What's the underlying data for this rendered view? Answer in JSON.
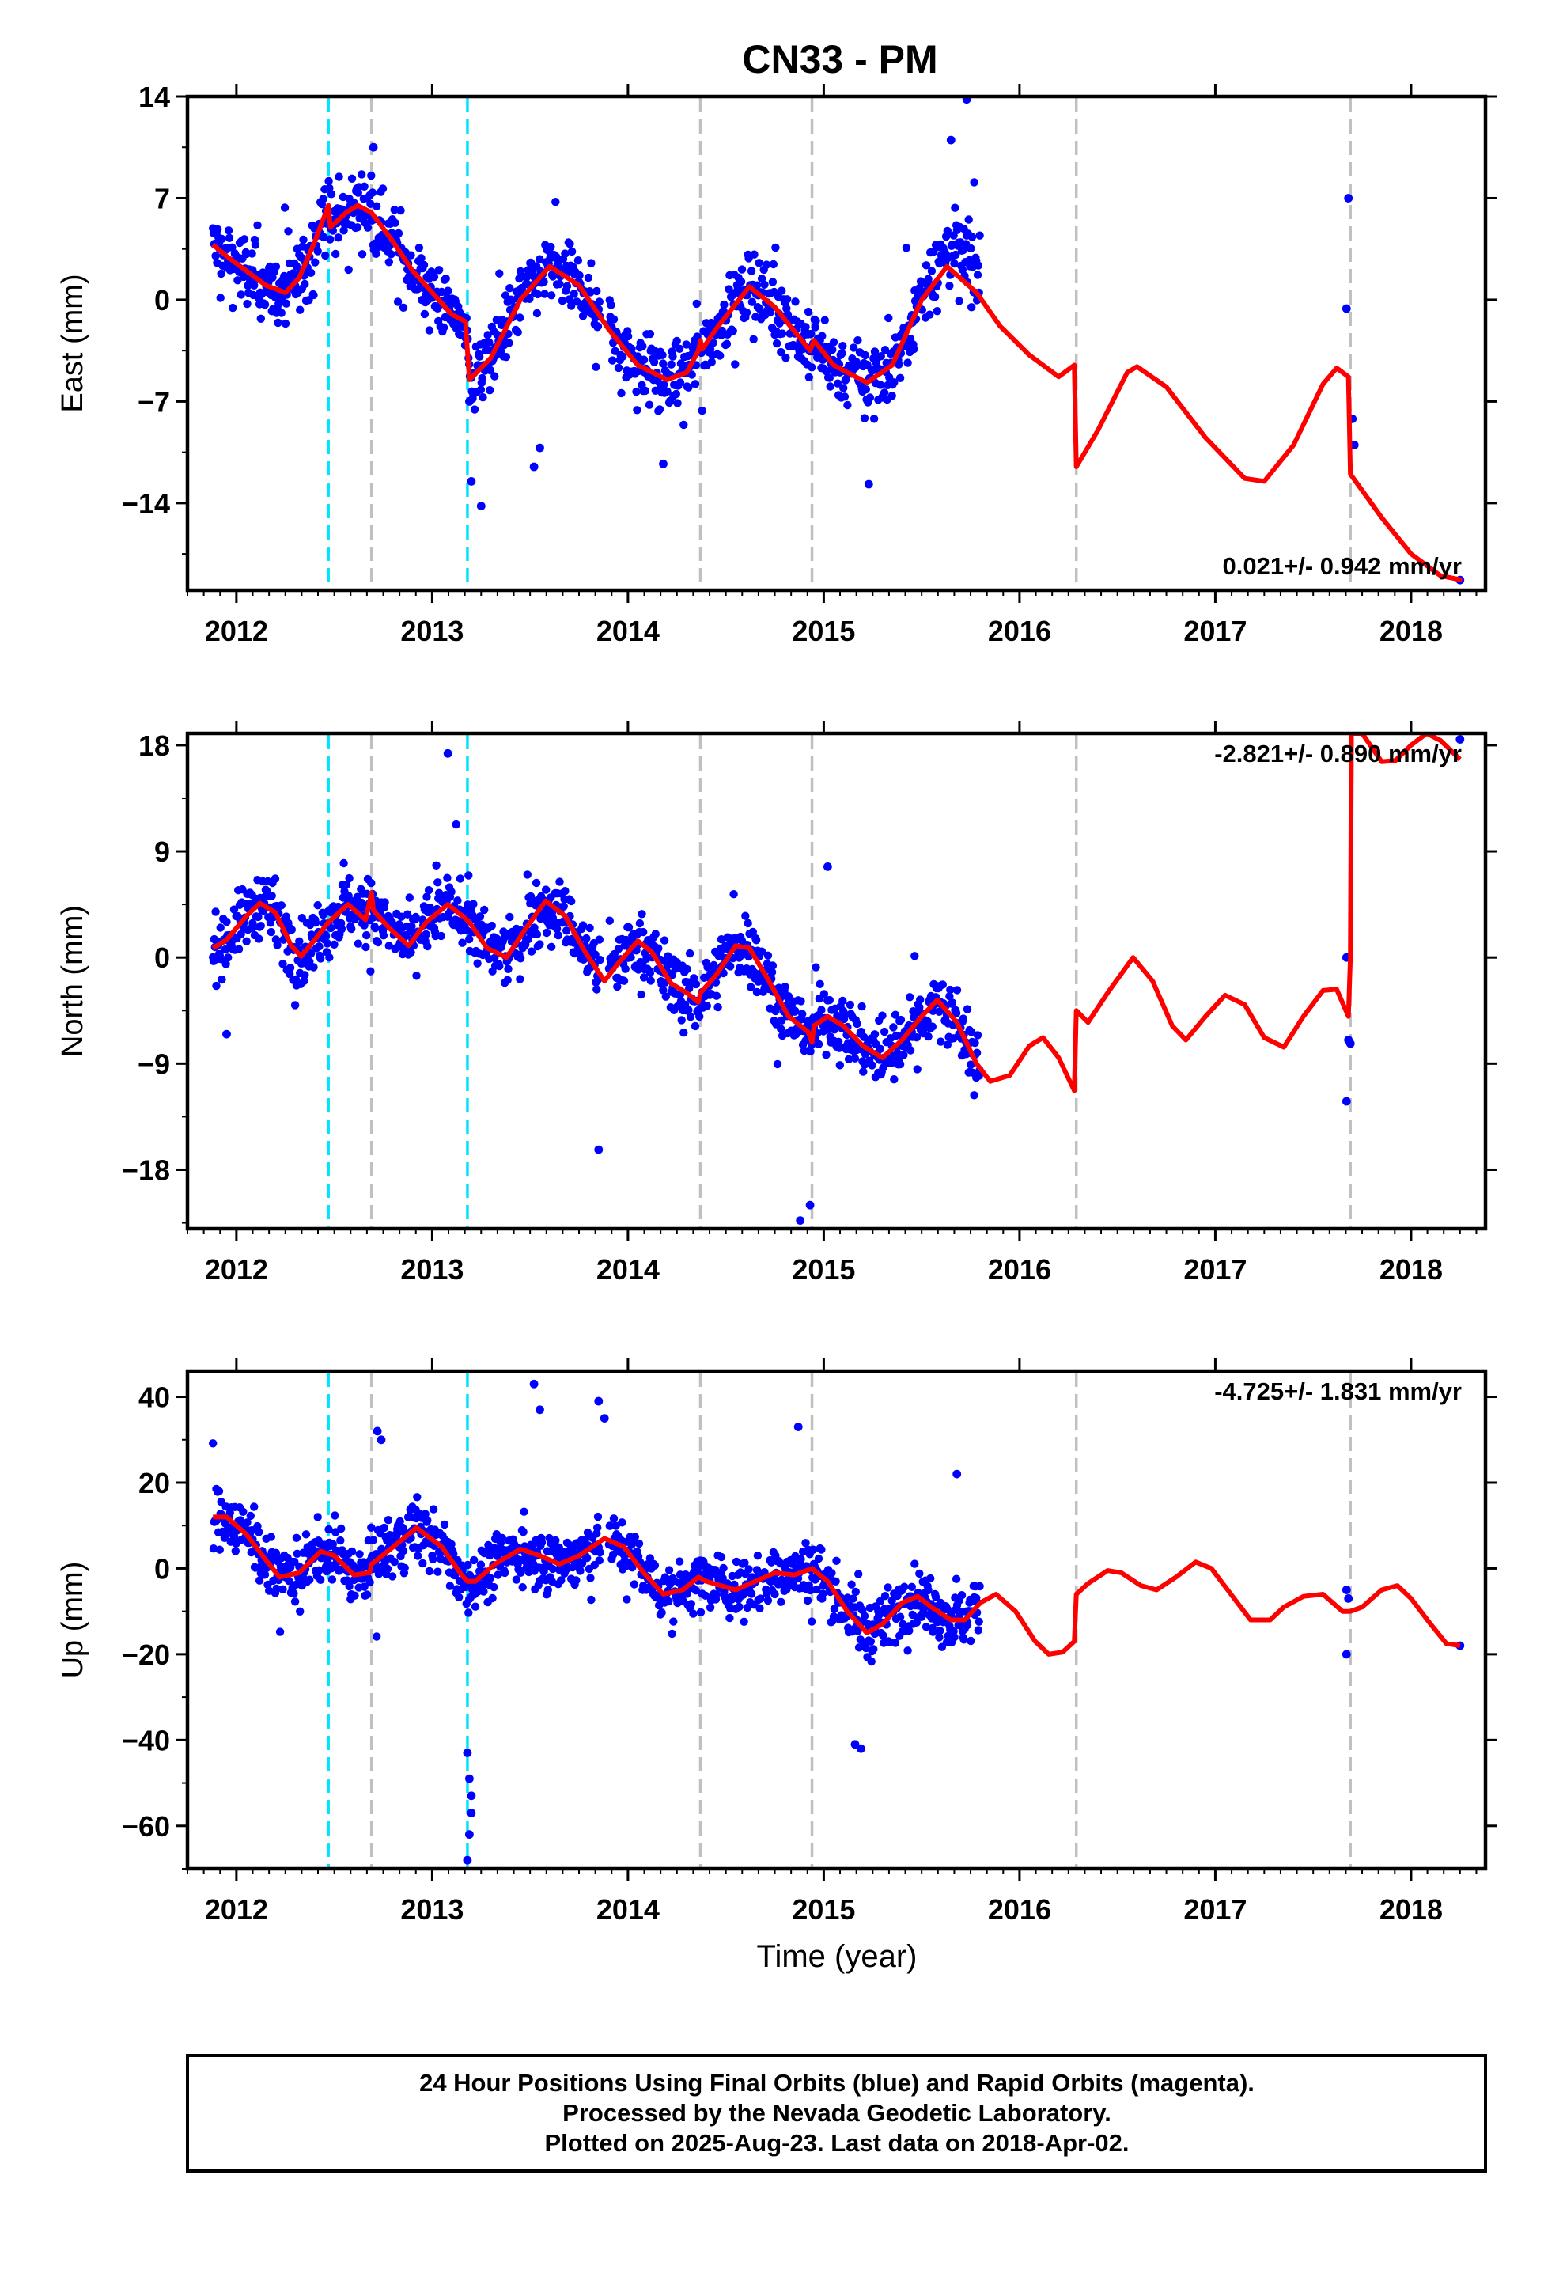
{
  "title": "CN33 - PM",
  "x_label": "Time (year)",
  "footer": {
    "line1": "24 Hour Positions Using Final Orbits (blue) and Rapid Orbits (magenta).",
    "line2": "Processed by the Nevada Geodetic Laboratory.",
    "line3": "Plotted on 2025-Aug-23. Last data on 2018-Apr-02."
  },
  "colors": {
    "final_orbits": "#0000ff",
    "model": "#ff0000",
    "equipment_change": "#c0c0c0",
    "earthquake": "#00e5ff"
  },
  "chart_data": [
    {
      "type": "scatter",
      "component": "East",
      "ylabel": "East (mm)",
      "xlim": [
        2011.75,
        2018.38
      ],
      "ylim": [
        -20,
        14
      ],
      "yticks": [
        -14,
        -7,
        0,
        7,
        14
      ],
      "xticks": [
        2012,
        2013,
        2014,
        2015,
        2016,
        2017,
        2018
      ],
      "rate_label": "0.021+/- 0.942 mm/yr",
      "rate_position": "bottom-right",
      "offsets": [
        {
          "x": 2012.47,
          "kind": "earthquake"
        },
        {
          "x": 2012.69,
          "kind": "equipment"
        },
        {
          "x": 2013.18,
          "kind": "earthquake"
        },
        {
          "x": 2014.37,
          "kind": "equipment"
        },
        {
          "x": 2014.94,
          "kind": "equipment"
        },
        {
          "x": 2016.29,
          "kind": "equipment"
        },
        {
          "x": 2017.69,
          "kind": "equipment"
        }
      ],
      "model": [
        [
          2011.88,
          3.8
        ],
        [
          2011.95,
          3
        ],
        [
          2012.05,
          2
        ],
        [
          2012.15,
          1
        ],
        [
          2012.25,
          0.5
        ],
        [
          2012.32,
          1.5
        ],
        [
          2012.4,
          4
        ],
        [
          2012.47,
          6.5
        ],
        [
          2012.48,
          5
        ],
        [
          2012.56,
          6
        ],
        [
          2012.62,
          6.5
        ],
        [
          2012.69,
          6
        ],
        [
          2012.8,
          4
        ],
        [
          2012.9,
          2
        ],
        [
          2013.0,
          0.5
        ],
        [
          2013.1,
          -1
        ],
        [
          2013.17,
          -1.5
        ],
        [
          2013.19,
          -5.5
        ],
        [
          2013.3,
          -4
        ],
        [
          2013.45,
          0
        ],
        [
          2013.6,
          2.3
        ],
        [
          2013.75,
          1
        ],
        [
          2013.9,
          -2
        ],
        [
          2014.05,
          -4.5
        ],
        [
          2014.2,
          -5.5
        ],
        [
          2014.3,
          -5
        ],
        [
          2014.36,
          -3.5
        ],
        [
          2014.37,
          -2.8
        ],
        [
          2014.38,
          -3.4
        ],
        [
          2014.45,
          -2
        ],
        [
          2014.62,
          0.9
        ],
        [
          2014.75,
          -0.5
        ],
        [
          2014.93,
          -3.5
        ],
        [
          2014.95,
          -2.8
        ],
        [
          2015.05,
          -4.5
        ],
        [
          2015.22,
          -5.7
        ],
        [
          2015.35,
          -4.5
        ],
        [
          2015.5,
          0
        ],
        [
          2015.63,
          2.3
        ],
        [
          2015.78,
          0.5
        ],
        [
          2015.9,
          -1.8
        ],
        [
          2016.05,
          -3.8
        ],
        [
          2016.2,
          -5.3
        ],
        [
          2016.28,
          -4.5
        ],
        [
          2016.29,
          -11.5
        ],
        [
          2016.4,
          -9
        ],
        [
          2016.55,
          -5
        ],
        [
          2016.6,
          -4.6
        ],
        [
          2016.75,
          -6
        ],
        [
          2016.95,
          -9.5
        ],
        [
          2017.15,
          -12.3
        ],
        [
          2017.25,
          -12.5
        ],
        [
          2017.4,
          -10
        ],
        [
          2017.55,
          -5.8
        ],
        [
          2017.62,
          -4.7
        ],
        [
          2017.68,
          -5.3
        ],
        [
          2017.69,
          -12
        ],
        [
          2017.85,
          -15
        ],
        [
          2018.0,
          -17.5
        ],
        [
          2018.15,
          -19
        ],
        [
          2018.26,
          -19.3
        ]
      ],
      "outliers": [
        [
          2017.68,
          7
        ],
        [
          2017.67,
          -0.6
        ],
        [
          2017.7,
          -8.2
        ],
        [
          2017.71,
          -10
        ],
        [
          2018.25,
          -19.3
        ],
        [
          2015.73,
          13.8
        ],
        [
          2015.65,
          11
        ],
        [
          2012.7,
          10.5
        ],
        [
          2013.19,
          -7
        ],
        [
          2013.2,
          -12.5
        ],
        [
          2013.25,
          -14.2
        ],
        [
          2013.52,
          -11.5
        ],
        [
          2013.55,
          -10.2
        ],
        [
          2014.18,
          -11.3
        ],
        [
          2015.23,
          -12.7
        ]
      ]
    },
    {
      "type": "scatter",
      "component": "North",
      "ylabel": "North (mm)",
      "xlim": [
        2011.75,
        2018.38
      ],
      "ylim": [
        -23,
        19
      ],
      "yticks": [
        -18,
        -9,
        0,
        9,
        18
      ],
      "xticks": [
        2012,
        2013,
        2014,
        2015,
        2016,
        2017,
        2018
      ],
      "rate_label": "-2.821+/- 0.890 mm/yr",
      "rate_position": "top-right",
      "offsets": [
        {
          "x": 2012.47,
          "kind": "earthquake"
        },
        {
          "x": 2012.69,
          "kind": "equipment"
        },
        {
          "x": 2013.18,
          "kind": "earthquake"
        },
        {
          "x": 2014.37,
          "kind": "equipment"
        },
        {
          "x": 2014.94,
          "kind": "equipment"
        },
        {
          "x": 2016.29,
          "kind": "equipment"
        },
        {
          "x": 2017.69,
          "kind": "equipment"
        }
      ],
      "model": [
        [
          2011.88,
          0.8
        ],
        [
          2011.95,
          1.5
        ],
        [
          2012.05,
          3.5
        ],
        [
          2012.12,
          4.6
        ],
        [
          2012.2,
          3.8
        ],
        [
          2012.28,
          1
        ],
        [
          2012.33,
          0.1
        ],
        [
          2012.4,
          1.5
        ],
        [
          2012.47,
          3
        ],
        [
          2012.57,
          4.5
        ],
        [
          2012.66,
          3.2
        ],
        [
          2012.69,
          5.5
        ],
        [
          2012.7,
          4
        ],
        [
          2012.78,
          2.5
        ],
        [
          2012.88,
          1
        ],
        [
          2012.97,
          3
        ],
        [
          2013.08,
          4.5
        ],
        [
          2013.17,
          3.3
        ],
        [
          2013.19,
          3
        ],
        [
          2013.28,
          0.8
        ],
        [
          2013.38,
          0
        ],
        [
          2013.48,
          2.5
        ],
        [
          2013.58,
          4.8
        ],
        [
          2013.68,
          3.5
        ],
        [
          2013.78,
          0.5
        ],
        [
          2013.88,
          -2
        ],
        [
          2013.95,
          -0.5
        ],
        [
          2014.05,
          1.4
        ],
        [
          2014.12,
          0.5
        ],
        [
          2014.22,
          -2.2
        ],
        [
          2014.3,
          -3
        ],
        [
          2014.36,
          -3.8
        ],
        [
          2014.37,
          -3
        ],
        [
          2014.45,
          -1.5
        ],
        [
          2014.55,
          1
        ],
        [
          2014.62,
          0.8
        ],
        [
          2014.72,
          -2
        ],
        [
          2014.82,
          -5
        ],
        [
          2014.92,
          -6.3
        ],
        [
          2014.94,
          -7.2
        ],
        [
          2014.95,
          -5.8
        ],
        [
          2015.02,
          -5
        ],
        [
          2015.1,
          -5.8
        ],
        [
          2015.2,
          -7.5
        ],
        [
          2015.3,
          -8.5
        ],
        [
          2015.4,
          -7
        ],
        [
          2015.5,
          -5
        ],
        [
          2015.58,
          -3.6
        ],
        [
          2015.68,
          -5.5
        ],
        [
          2015.78,
          -9
        ],
        [
          2015.85,
          -10.5
        ],
        [
          2015.95,
          -10
        ],
        [
          2016.05,
          -7.5
        ],
        [
          2016.12,
          -6.8
        ],
        [
          2016.2,
          -8.5
        ],
        [
          2016.28,
          -11.3
        ],
        [
          2016.29,
          -4.5
        ],
        [
          2016.35,
          -5.5
        ],
        [
          2016.45,
          -3
        ],
        [
          2016.58,
          0
        ],
        [
          2016.68,
          -2
        ],
        [
          2016.78,
          -5.8
        ],
        [
          2016.85,
          -7
        ],
        [
          2016.95,
          -5
        ],
        [
          2017.05,
          -3.2
        ],
        [
          2017.15,
          -4
        ],
        [
          2017.25,
          -6.8
        ],
        [
          2017.35,
          -7.6
        ],
        [
          2017.45,
          -5
        ],
        [
          2017.55,
          -2.8
        ],
        [
          2017.62,
          -2.7
        ],
        [
          2017.68,
          -5
        ],
        [
          2017.69,
          0
        ],
        [
          2017.695,
          19
        ],
        [
          2017.75,
          19
        ],
        [
          2017.85,
          16.6
        ],
        [
          2017.92,
          16.7
        ],
        [
          2018.0,
          18
        ],
        [
          2018.08,
          19
        ],
        [
          2018.15,
          18.4
        ],
        [
          2018.25,
          16.8
        ]
      ],
      "outliers": [
        [
          2017.67,
          0
        ],
        [
          2017.68,
          -7
        ],
        [
          2017.69,
          -7.3
        ],
        [
          2017.67,
          -12.2
        ],
        [
          2018.25,
          18.5
        ],
        [
          2013.08,
          17.3
        ],
        [
          2014.93,
          -21
        ],
        [
          2014.88,
          -22.3
        ],
        [
          2015.02,
          7.7
        ],
        [
          2013.85,
          -16.3
        ],
        [
          2011.95,
          -6.5
        ]
      ]
    },
    {
      "type": "scatter",
      "component": "Up",
      "ylabel": "Up (mm)",
      "xlim": [
        2011.75,
        2018.38
      ],
      "ylim": [
        -70,
        46
      ],
      "yticks": [
        -60,
        -40,
        -20,
        0,
        20,
        40
      ],
      "xticks": [
        2012,
        2013,
        2014,
        2015,
        2016,
        2017,
        2018
      ],
      "rate_label": "-4.725+/- 1.831 mm/yr",
      "rate_position": "top-right",
      "offsets": [
        {
          "x": 2012.47,
          "kind": "earthquake"
        },
        {
          "x": 2012.69,
          "kind": "equipment"
        },
        {
          "x": 2013.18,
          "kind": "earthquake"
        },
        {
          "x": 2014.37,
          "kind": "equipment"
        },
        {
          "x": 2014.94,
          "kind": "equipment"
        },
        {
          "x": 2016.29,
          "kind": "equipment"
        },
        {
          "x": 2017.69,
          "kind": "equipment"
        }
      ],
      "model": [
        [
          2011.88,
          12
        ],
        [
          2011.95,
          12
        ],
        [
          2012.05,
          8
        ],
        [
          2012.15,
          2
        ],
        [
          2012.22,
          -2
        ],
        [
          2012.32,
          -1
        ],
        [
          2012.43,
          4
        ],
        [
          2012.5,
          3
        ],
        [
          2012.6,
          -1.5
        ],
        [
          2012.68,
          -1
        ],
        [
          2012.69,
          1
        ],
        [
          2012.8,
          5
        ],
        [
          2012.92,
          9.5
        ],
        [
          2013.05,
          5
        ],
        [
          2013.15,
          -1.5
        ],
        [
          2013.18,
          -3
        ],
        [
          2013.22,
          -3
        ],
        [
          2013.32,
          1
        ],
        [
          2013.45,
          4.5
        ],
        [
          2013.55,
          3
        ],
        [
          2013.65,
          1
        ],
        [
          2013.75,
          3
        ],
        [
          2013.88,
          7
        ],
        [
          2013.98,
          5
        ],
        [
          2014.08,
          -1
        ],
        [
          2014.18,
          -6
        ],
        [
          2014.28,
          -5
        ],
        [
          2014.36,
          -2
        ],
        [
          2014.4,
          -3
        ],
        [
          2014.55,
          -5
        ],
        [
          2014.65,
          -3
        ],
        [
          2014.75,
          -1
        ],
        [
          2014.85,
          -1.5
        ],
        [
          2014.94,
          0
        ],
        [
          2015.02,
          -3
        ],
        [
          2015.12,
          -10
        ],
        [
          2015.22,
          -15
        ],
        [
          2015.3,
          -13
        ],
        [
          2015.4,
          -8
        ],
        [
          2015.48,
          -6.5
        ],
        [
          2015.55,
          -9
        ],
        [
          2015.65,
          -12
        ],
        [
          2015.72,
          -12
        ],
        [
          2015.8,
          -8
        ],
        [
          2015.88,
          -6
        ],
        [
          2015.98,
          -10
        ],
        [
          2016.08,
          -17
        ],
        [
          2016.15,
          -20
        ],
        [
          2016.22,
          -19.5
        ],
        [
          2016.28,
          -17
        ],
        [
          2016.29,
          -6
        ],
        [
          2016.35,
          -3.5
        ],
        [
          2016.45,
          -0.5
        ],
        [
          2016.52,
          -1
        ],
        [
          2016.62,
          -4
        ],
        [
          2016.7,
          -5
        ],
        [
          2016.8,
          -2
        ],
        [
          2016.9,
          1.5
        ],
        [
          2016.98,
          0
        ],
        [
          2017.08,
          -6
        ],
        [
          2017.18,
          -12
        ],
        [
          2017.28,
          -12
        ],
        [
          2017.35,
          -9
        ],
        [
          2017.45,
          -6.5
        ],
        [
          2017.55,
          -6
        ],
        [
          2017.65,
          -10
        ],
        [
          2017.69,
          -10
        ],
        [
          2017.75,
          -9
        ],
        [
          2017.85,
          -5
        ],
        [
          2017.93,
          -4
        ],
        [
          2018.0,
          -7
        ],
        [
          2018.1,
          -13
        ],
        [
          2018.18,
          -17.5
        ],
        [
          2018.25,
          -18
        ]
      ],
      "outliers": [
        [
          2017.67,
          -5
        ],
        [
          2017.68,
          -7
        ],
        [
          2017.67,
          -20
        ],
        [
          2018.25,
          -18
        ],
        [
          2013.18,
          -43
        ],
        [
          2013.19,
          -49
        ],
        [
          2013.2,
          -53
        ],
        [
          2013.2,
          -57
        ],
        [
          2013.19,
          -62
        ],
        [
          2013.18,
          -68
        ],
        [
          2013.52,
          43
        ],
        [
          2013.55,
          37
        ],
        [
          2013.85,
          39
        ],
        [
          2013.88,
          35
        ],
        [
          2014.87,
          33
        ],
        [
          2012.72,
          32
        ],
        [
          2012.74,
          30
        ],
        [
          2015.16,
          -41
        ],
        [
          2015.19,
          -42
        ],
        [
          2015.68,
          22
        ]
      ]
    }
  ]
}
